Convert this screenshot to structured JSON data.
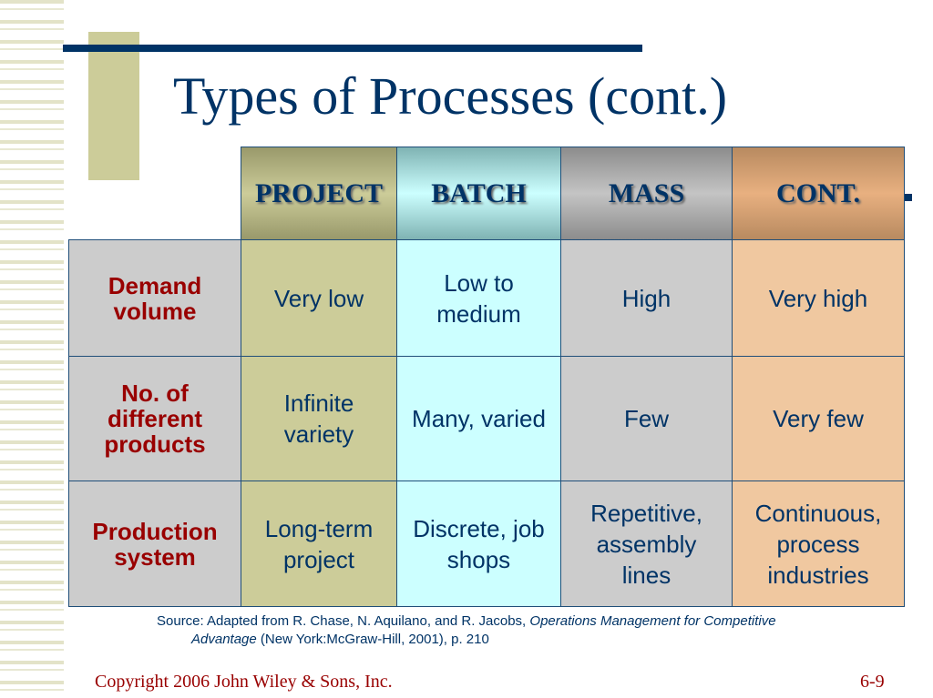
{
  "title": "Types of Processes (cont.)",
  "colors": {
    "project": "#cccc99",
    "batch": "#ccffff",
    "mass": "#cccccc",
    "cont": "#f0c8a0",
    "label": "#cccccc",
    "title": "#003366"
  },
  "table": {
    "headers": [
      "PROJECT",
      "BATCH",
      "MASS",
      "CONT."
    ],
    "rows": [
      {
        "label": "Demand volume",
        "cells": [
          "Very low",
          "Low to medium",
          "High",
          "Very high"
        ]
      },
      {
        "label": "No. of different products",
        "cells": [
          "Infinite variety",
          "Many, varied",
          "Few",
          "Very few"
        ]
      },
      {
        "label": "Production system",
        "cells": [
          "Long-term project",
          "Discrete, job shops",
          "Repetitive, assembly lines",
          "Continuous, process industries"
        ]
      }
    ]
  },
  "source": {
    "prefix": "Source: Adapted from R. Chase, N. Aquilano, and R. Jacobs, ",
    "italic1": "Operations Management for Competitive",
    "italic2": "Advantage",
    "suffix": " (New York:McGraw-Hill, 2001), p. 210"
  },
  "footer": {
    "copyright": "Copyright 2006 John Wiley & Sons, Inc.",
    "page": "6-9"
  }
}
